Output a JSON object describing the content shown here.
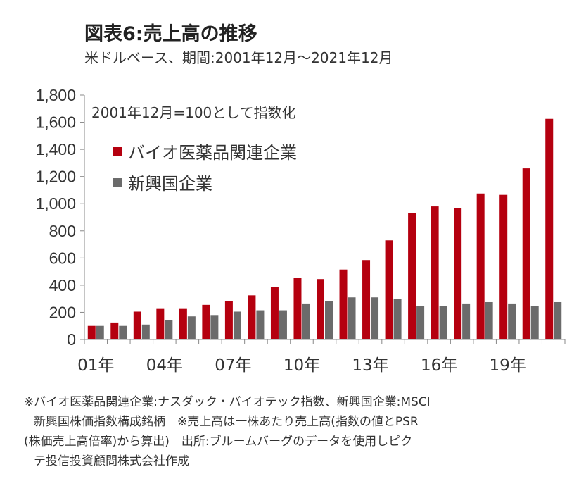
{
  "title": "図表6:売上高の推移",
  "subtitle": "米ドルベース、期間:2001年12月～2021年12月",
  "footnotes": [
    "※バイオ医薬品関連企業:ナスダック・バイオテック指数、新興国企業:MSCI",
    "  新興国株価指数構成銘柄　※売上高は一株あたり売上高(指数の値とPSR",
    "(株価売上高倍率)から算出)　出所:ブルームバーグのデータを使用しピク",
    "  テ投信投資顧問株式会社作成"
  ],
  "chart_data": {
    "type": "bar",
    "annotation": "2001年12月=100として指数化",
    "xticks": [
      "01年",
      "04年",
      "07年",
      "10年",
      "13年",
      "16年",
      "19年"
    ],
    "yticks": [
      "0",
      "200",
      "400",
      "600",
      "800",
      "1,000",
      "1,200",
      "1,400",
      "1,600",
      "1,800"
    ],
    "ylim": [
      0,
      1800
    ],
    "grid": false,
    "legend_placement": "top-left",
    "colors": {
      "bio": "#b5000f",
      "em": "#6b6b6b"
    },
    "categories": [
      "01",
      "02",
      "03",
      "04",
      "05",
      "06",
      "07",
      "08",
      "09",
      "10",
      "11",
      "12",
      "13",
      "14",
      "15",
      "16",
      "17",
      "18",
      "19",
      "20",
      "21"
    ],
    "series": [
      {
        "name": "バイオ医薬品関連企業",
        "values": [
          100,
          125,
          205,
          230,
          230,
          255,
          285,
          325,
          385,
          455,
          445,
          515,
          585,
          730,
          930,
          980,
          970,
          1075,
          1065,
          1260,
          1625
        ]
      },
      {
        "name": "新興国企業",
        "values": [
          100,
          100,
          110,
          145,
          170,
          180,
          205,
          215,
          215,
          265,
          285,
          310,
          310,
          300,
          245,
          245,
          265,
          275,
          265,
          245,
          275
        ]
      }
    ]
  }
}
